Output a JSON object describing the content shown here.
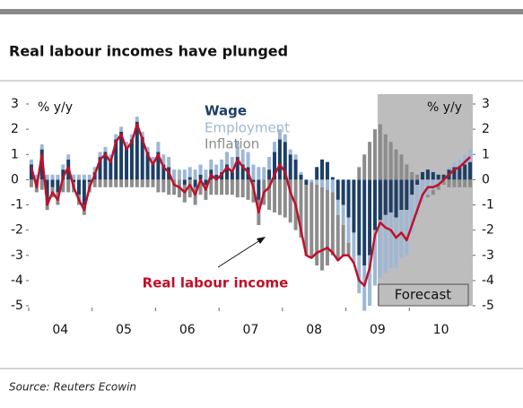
{
  "chart_data": {
    "type": "bar",
    "title": "Real labour incomes have plunged",
    "source": "Source: Reuters Ecowin",
    "y_label": "% y/y",
    "y2_label": "% y/y",
    "annotations": {
      "line_label": "Real labour income",
      "forecast": "Forecast"
    },
    "categories": [
      null,
      null,
      null,
      null,
      null,
      null,
      "04",
      null,
      null,
      null,
      null,
      null,
      null,
      null,
      null,
      null,
      null,
      null,
      "05",
      null,
      null,
      null,
      null,
      null,
      null,
      null,
      null,
      null,
      null,
      null,
      "06",
      null,
      null,
      null,
      null,
      null,
      null,
      null,
      null,
      null,
      null,
      null,
      "07",
      null,
      null,
      null,
      null,
      null,
      null,
      null,
      null,
      null,
      null,
      null,
      "08",
      null,
      null,
      null,
      null,
      null,
      null,
      null,
      null,
      null,
      null,
      null,
      "09",
      null,
      null,
      null,
      null,
      null,
      null,
      null,
      null,
      null,
      null,
      null,
      "10",
      null,
      null,
      null,
      null,
      null
    ],
    "ylim": [
      -5,
      3
    ],
    "yticks": [
      3,
      2,
      1,
      0,
      -1,
      -2,
      -3,
      -4,
      -5
    ],
    "y2lim": [
      -5,
      3
    ],
    "y2ticks": [
      3,
      2,
      1,
      0,
      -1,
      -2,
      -3,
      -4,
      -5
    ],
    "forecast_start_index": 66,
    "series": [
      {
        "name": "Wage",
        "type": "bar",
        "color": "#1c3f66",
        "values": [
          0.6,
          -0.2,
          1.2,
          -0.8,
          -0.3,
          -0.5,
          0.4,
          0.8,
          -0.1,
          -0.6,
          -1.0,
          -0.1,
          0.3,
          0.9,
          1.1,
          0.8,
          1.6,
          1.9,
          1.3,
          1.6,
          2.3,
          1.7,
          1.1,
          0.7,
          1.1,
          0.6,
          0.5,
          0.0,
          0.0,
          -0.2,
          0.1,
          -0.3,
          0.2,
          -0.2,
          0.4,
          0.2,
          0.3,
          0.6,
          0.3,
          0.9,
          0.6,
          0.5,
          -0.1,
          -0.8,
          0.0,
          0.4,
          1.1,
          1.6,
          1.5,
          1.0,
          0.8,
          0.2,
          -0.2,
          0.0,
          0.5,
          0.8,
          0.7,
          0.1,
          -0.8,
          -1.0,
          -1.5,
          -2.1,
          -3.0,
          -3.4,
          -3.0,
          -2.0,
          -1.6,
          -1.4,
          -1.3,
          -1.5,
          -1.2,
          -1.2,
          -0.6,
          -0.2,
          0.3,
          0.4,
          0.3,
          0.2,
          0.2,
          0.4,
          0.5,
          0.5,
          0.6,
          0.7
        ]
      },
      {
        "name": "Employment",
        "type": "bar",
        "color": "#9db8d6",
        "values": [
          0.2,
          0.2,
          0.2,
          0.2,
          0.2,
          0.2,
          0.2,
          0.2,
          0.2,
          0.2,
          0.2,
          0.2,
          0.2,
          0.2,
          0.2,
          0.2,
          0.2,
          0.2,
          0.2,
          0.2,
          0.2,
          0.2,
          0.2,
          0.2,
          0.4,
          0.4,
          0.4,
          0.4,
          0.4,
          0.4,
          0.4,
          0.4,
          0.4,
          0.4,
          0.4,
          0.4,
          0.5,
          0.5,
          0.6,
          0.6,
          0.6,
          0.6,
          0.6,
          0.5,
          0.5,
          0.5,
          0.4,
          0.4,
          0.3,
          0.2,
          0.2,
          0.1,
          0.0,
          -0.1,
          -0.2,
          -0.3,
          -0.4,
          -0.5,
          -0.6,
          -0.8,
          -1.0,
          -1.2,
          -1.5,
          -1.8,
          -2.0,
          -2.2,
          -2.3,
          -2.3,
          -2.2,
          -2.0,
          -1.9,
          -1.8,
          -1.5,
          -1.2,
          -0.9,
          -0.6,
          -0.4,
          -0.2,
          0.0,
          0.1,
          0.2,
          0.3,
          0.4,
          0.5
        ]
      },
      {
        "name": "Inflation",
        "type": "bar",
        "color": "#8c8c8c",
        "values": [
          -0.3,
          -0.3,
          -0.4,
          -0.4,
          -0.4,
          -0.5,
          -0.5,
          -0.5,
          -0.4,
          -0.4,
          -0.4,
          -0.4,
          -0.3,
          -0.3,
          -0.3,
          -0.3,
          -0.3,
          -0.3,
          -0.3,
          -0.3,
          -0.3,
          -0.3,
          -0.3,
          -0.3,
          -0.5,
          -0.5,
          -0.6,
          -0.6,
          -0.7,
          -0.7,
          -0.7,
          -0.7,
          -0.6,
          -0.6,
          -0.6,
          -0.6,
          -0.6,
          -0.6,
          -0.6,
          -0.7,
          -0.7,
          -0.8,
          -0.8,
          -1.0,
          -1.0,
          -1.2,
          -1.3,
          -1.4,
          -1.5,
          -1.7,
          -2.0,
          -2.3,
          -2.8,
          -3.0,
          -3.2,
          -3.3,
          -3.0,
          -2.5,
          -1.8,
          -1.2,
          -0.5,
          0.0,
          0.5,
          1.0,
          1.5,
          2.0,
          2.2,
          1.8,
          1.5,
          1.2,
          1.0,
          0.6,
          0.3,
          0.2,
          0.0,
          -0.1,
          -0.2,
          -0.2,
          -0.2,
          -0.3,
          -0.3,
          -0.3,
          -0.3,
          -0.3
        ]
      },
      {
        "name": "Real labour income",
        "type": "line",
        "color": "#c0102a",
        "values": [
          0.5,
          -0.3,
          1.0,
          -1.0,
          -0.5,
          -0.8,
          0.1,
          0.5,
          -0.3,
          -0.8,
          -1.2,
          -0.3,
          0.2,
          0.8,
          1.0,
          0.7,
          1.5,
          1.8,
          1.2,
          1.5,
          2.2,
          1.6,
          1.0,
          0.6,
          1.0,
          0.5,
          0.3,
          -0.2,
          -0.3,
          -0.5,
          -0.2,
          -0.6,
          0.0,
          -0.4,
          0.2,
          0.0,
          0.2,
          0.5,
          0.3,
          0.8,
          0.5,
          0.3,
          -0.3,
          -1.3,
          -0.5,
          -0.3,
          0.2,
          0.6,
          0.3,
          -0.5,
          -1.0,
          -2.0,
          -3.0,
          -3.1,
          -2.9,
          -2.8,
          -2.7,
          -2.9,
          -3.2,
          -3.0,
          -3.0,
          -3.3,
          -4.0,
          -4.2,
          -3.5,
          -2.2,
          -1.7,
          -1.9,
          -2.0,
          -2.3,
          -2.1,
          -2.4,
          -1.8,
          -1.2,
          -0.6,
          -0.3,
          -0.3,
          -0.2,
          0.0,
          0.2,
          0.4,
          0.5,
          0.7,
          0.9
        ]
      }
    ]
  }
}
